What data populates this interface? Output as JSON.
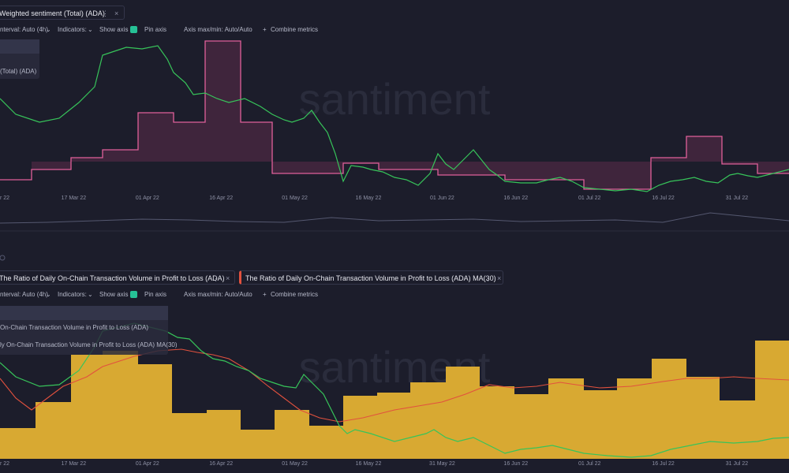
{
  "top_panel": {
    "tab_title": "Weighted sentiment (Total) (ADA)",
    "toolbar": {
      "interval": "nterval: Auto (4h)",
      "indicators": "Indicators:",
      "show_axis": "Show axis",
      "pin_axis": "Pin axis",
      "axis_maxmin": "Axis max/min: Auto/Auto",
      "combine": "Combine metrics"
    },
    "legend": "(Total) (ADA)",
    "x_labels": [
      "r 22",
      "17 Mar 22",
      "01 Apr 22",
      "16 Apr 22",
      "01 May 22",
      "16 May 22",
      "01 Jun 22",
      "16 Jun 22",
      "01 Jul 22",
      "16 Jul 22",
      "31 Jul 22"
    ]
  },
  "bottom_panel": {
    "tabs": [
      "The Ratio of Daily On-Chain Transaction Volume in Profit to Loss (ADA)",
      "The Ratio of Daily On-Chain Transaction Volume in Profit to Loss (ADA) MA(30)"
    ],
    "toolbar": {
      "interval": "nterval: Auto (4h)",
      "indicators": "Indicators:",
      "show_axis": "Show axis",
      "pin_axis": "Pin axis",
      "axis_maxmin": "Axis max/min: Auto/Auto",
      "combine": "Combine metrics"
    },
    "legend": [
      "On-Chain Transaction Volume in Profit to Loss (ADA)",
      "ly On-Chain Transaction Volume in Profit to Loss (ADA) MA(30)"
    ],
    "x_labels": [
      "r 22",
      "17 Mar 22",
      "01 Apr 22",
      "16 Apr 22",
      "01 May 22",
      "16 May 22",
      "31 May 22",
      "16 Jun 22",
      "01 Jul 22",
      "16 Jul 22",
      "31 Jul 22"
    ]
  },
  "watermark": "santiment"
}
